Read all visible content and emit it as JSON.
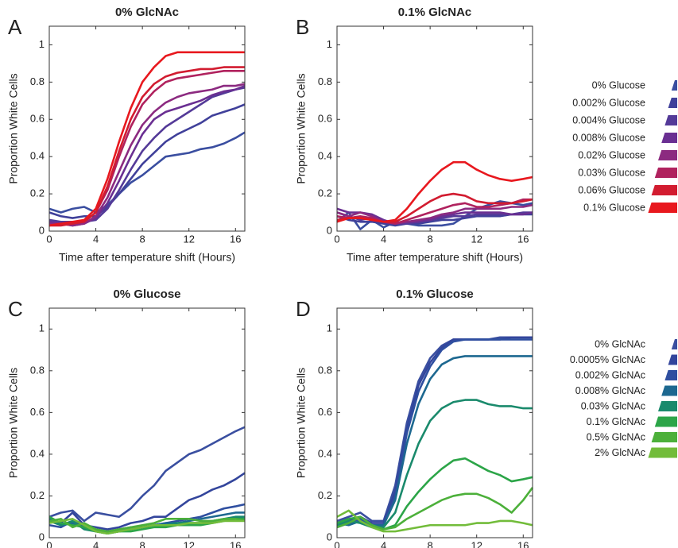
{
  "chart_data": [
    {
      "type": "line",
      "panel_label": "A",
      "title": "0% GlcNAc",
      "xlabel": "Time after temperature shift (Hours)",
      "ylabel": "Proportion White Cells",
      "x": [
        0,
        1,
        2,
        3,
        4,
        5,
        6,
        7,
        8,
        9,
        10,
        11,
        12,
        13,
        14,
        15,
        16,
        16.8
      ],
      "xlim": [
        0,
        16.8
      ],
      "ylim": [
        0,
        1.1
      ],
      "xticks": [
        0,
        4,
        8,
        12,
        16
      ],
      "yticks": [
        0,
        0.2,
        0.4,
        0.6,
        0.8,
        1
      ],
      "series": [
        {
          "name": "0% Glucose",
          "color": "#3a4ea0",
          "values": [
            0.12,
            0.1,
            0.12,
            0.13,
            0.1,
            0.14,
            0.2,
            0.26,
            0.3,
            0.35,
            0.4,
            0.41,
            0.42,
            0.44,
            0.45,
            0.47,
            0.5,
            0.53
          ]
        },
        {
          "name": "0.002% Glucose",
          "color": "#40409a",
          "values": [
            0.1,
            0.08,
            0.07,
            0.08,
            0.08,
            0.13,
            0.2,
            0.28,
            0.36,
            0.42,
            0.48,
            0.52,
            0.55,
            0.58,
            0.62,
            0.64,
            0.66,
            0.68
          ]
        },
        {
          "name": "0.004% Glucose",
          "color": "#543a98",
          "values": [
            0.06,
            0.05,
            0.05,
            0.05,
            0.06,
            0.12,
            0.22,
            0.33,
            0.43,
            0.5,
            0.56,
            0.6,
            0.64,
            0.68,
            0.72,
            0.74,
            0.76,
            0.77
          ]
        },
        {
          "name": "0.008% Glucose",
          "color": "#6a2f92",
          "values": [
            0.05,
            0.04,
            0.03,
            0.04,
            0.07,
            0.15,
            0.27,
            0.4,
            0.52,
            0.6,
            0.64,
            0.66,
            0.68,
            0.7,
            0.73,
            0.75,
            0.76,
            0.78
          ]
        },
        {
          "name": "0.02% Glucose",
          "color": "#8c2a80",
          "values": [
            0.04,
            0.04,
            0.03,
            0.04,
            0.08,
            0.18,
            0.32,
            0.46,
            0.57,
            0.64,
            0.69,
            0.72,
            0.74,
            0.75,
            0.76,
            0.78,
            0.78,
            0.79
          ]
        },
        {
          "name": "0.03% Glucose",
          "color": "#b0225e",
          "values": [
            0.03,
            0.04,
            0.04,
            0.05,
            0.1,
            0.22,
            0.4,
            0.56,
            0.68,
            0.75,
            0.8,
            0.82,
            0.83,
            0.84,
            0.85,
            0.86,
            0.86,
            0.86
          ]
        },
        {
          "name": "0.06% Glucose",
          "color": "#d21c30",
          "values": [
            0.03,
            0.03,
            0.04,
            0.05,
            0.1,
            0.24,
            0.43,
            0.6,
            0.72,
            0.79,
            0.83,
            0.85,
            0.86,
            0.87,
            0.87,
            0.88,
            0.88,
            0.88
          ]
        },
        {
          "name": "0.1% Glucose",
          "color": "#e8181e",
          "values": [
            0.03,
            0.04,
            0.05,
            0.06,
            0.12,
            0.28,
            0.48,
            0.66,
            0.8,
            0.88,
            0.94,
            0.96,
            0.96,
            0.96,
            0.96,
            0.96,
            0.96,
            0.96
          ]
        }
      ]
    },
    {
      "type": "line",
      "panel_label": "B",
      "title": "0.1% GlcNAc",
      "xlabel": "Time after temperature shift (Hours)",
      "ylabel": "Proportion White Cells",
      "x": [
        0,
        1,
        2,
        3,
        4,
        5,
        6,
        7,
        8,
        9,
        10,
        11,
        12,
        13,
        14,
        15,
        16,
        16.8
      ],
      "xlim": [
        0,
        16.8
      ],
      "ylim": [
        0,
        1.1
      ],
      "xticks": [
        0,
        4,
        8,
        12,
        16
      ],
      "yticks": [
        0,
        0.2,
        0.4,
        0.6,
        0.8,
        1
      ],
      "series": [
        {
          "color": "#3a4ea0",
          "values": [
            0.05,
            0.1,
            0.01,
            0.06,
            0.02,
            0.05,
            0.04,
            0.03,
            0.03,
            0.03,
            0.04,
            0.08,
            0.12,
            0.14,
            0.16,
            0.15,
            0.14,
            0.15
          ]
        },
        {
          "color": "#40409a",
          "values": [
            0.08,
            0.06,
            0.05,
            0.05,
            0.04,
            0.03,
            0.04,
            0.04,
            0.05,
            0.06,
            0.06,
            0.07,
            0.08,
            0.08,
            0.08,
            0.09,
            0.09,
            0.09
          ]
        },
        {
          "color": "#543a98",
          "values": [
            0.1,
            0.08,
            0.06,
            0.07,
            0.05,
            0.04,
            0.04,
            0.05,
            0.06,
            0.07,
            0.08,
            0.08,
            0.09,
            0.09,
            0.09,
            0.09,
            0.1,
            0.1
          ]
        },
        {
          "color": "#6a2f92",
          "values": [
            0.12,
            0.1,
            0.1,
            0.09,
            0.06,
            0.04,
            0.05,
            0.05,
            0.06,
            0.08,
            0.09,
            0.1,
            0.1,
            0.1,
            0.1,
            0.09,
            0.09,
            0.1
          ]
        },
        {
          "color": "#8c2a80",
          "values": [
            0.1,
            0.08,
            0.1,
            0.08,
            0.05,
            0.04,
            0.05,
            0.06,
            0.07,
            0.09,
            0.1,
            0.12,
            0.12,
            0.12,
            0.12,
            0.13,
            0.13,
            0.14
          ]
        },
        {
          "color": "#b0225e",
          "values": [
            0.08,
            0.07,
            0.08,
            0.07,
            0.05,
            0.04,
            0.06,
            0.08,
            0.1,
            0.12,
            0.14,
            0.15,
            0.13,
            0.13,
            0.14,
            0.15,
            0.17,
            0.17
          ]
        },
        {
          "color": "#d21c30",
          "values": [
            0.06,
            0.07,
            0.07,
            0.06,
            0.05,
            0.05,
            0.08,
            0.12,
            0.16,
            0.19,
            0.2,
            0.19,
            0.16,
            0.15,
            0.15,
            0.15,
            0.16,
            0.17
          ]
        },
        {
          "color": "#e8181e",
          "values": [
            0.05,
            0.07,
            0.07,
            0.06,
            0.05,
            0.06,
            0.12,
            0.2,
            0.27,
            0.33,
            0.37,
            0.37,
            0.33,
            0.3,
            0.28,
            0.27,
            0.28,
            0.29
          ]
        }
      ]
    },
    {
      "type": "line",
      "panel_label": "C",
      "title": "0% Glucose",
      "xlabel": "Time after temperature shift (Hours)",
      "ylabel": "Proportion White Cells",
      "x": [
        0,
        1,
        2,
        3,
        4,
        5,
        6,
        7,
        8,
        9,
        10,
        11,
        12,
        13,
        14,
        15,
        16,
        16.8
      ],
      "xlim": [
        0,
        16.8
      ],
      "ylim": [
        0,
        1.1
      ],
      "xticks": [
        0,
        4,
        8,
        12,
        16
      ],
      "yticks": [
        0,
        0.2,
        0.4,
        0.6,
        0.8,
        1
      ],
      "series": [
        {
          "name": "0% GlcNAc",
          "color": "#3a4fa0",
          "values": [
            0.1,
            0.12,
            0.13,
            0.08,
            0.12,
            0.11,
            0.1,
            0.14,
            0.2,
            0.25,
            0.32,
            0.36,
            0.4,
            0.42,
            0.45,
            0.48,
            0.51,
            0.53
          ]
        },
        {
          "name": "0.0005% GlcNAc",
          "color": "#33459c",
          "values": [
            0.08,
            0.07,
            0.12,
            0.06,
            0.05,
            0.04,
            0.05,
            0.07,
            0.08,
            0.1,
            0.1,
            0.14,
            0.18,
            0.2,
            0.23,
            0.25,
            0.28,
            0.31
          ]
        },
        {
          "name": "0.002% GlcNAc",
          "color": "#2f4fa0",
          "values": [
            0.06,
            0.05,
            0.08,
            0.06,
            0.04,
            0.03,
            0.04,
            0.05,
            0.05,
            0.06,
            0.07,
            0.08,
            0.09,
            0.1,
            0.12,
            0.14,
            0.15,
            0.16
          ]
        },
        {
          "name": "0.008% GlcNAc",
          "color": "#1d6890",
          "values": [
            0.09,
            0.06,
            0.07,
            0.05,
            0.03,
            0.03,
            0.03,
            0.04,
            0.05,
            0.06,
            0.07,
            0.07,
            0.08,
            0.09,
            0.1,
            0.11,
            0.12,
            0.12
          ]
        },
        {
          "name": "0.03% GlcNAc",
          "color": "#1a8a6c",
          "values": [
            0.08,
            0.06,
            0.08,
            0.04,
            0.03,
            0.02,
            0.03,
            0.04,
            0.05,
            0.06,
            0.06,
            0.07,
            0.07,
            0.07,
            0.08,
            0.09,
            0.1,
            0.1
          ]
        },
        {
          "name": "0.1% GlcNAc",
          "color": "#2ca548",
          "values": [
            0.1,
            0.07,
            0.06,
            0.05,
            0.03,
            0.02,
            0.03,
            0.03,
            0.04,
            0.05,
            0.05,
            0.06,
            0.06,
            0.06,
            0.07,
            0.08,
            0.09,
            0.09
          ]
        },
        {
          "name": "0.5% GlcNAc",
          "color": "#4cb03a",
          "values": [
            0.08,
            0.09,
            0.05,
            0.07,
            0.04,
            0.03,
            0.04,
            0.05,
            0.06,
            0.07,
            0.09,
            0.09,
            0.09,
            0.08,
            0.08,
            0.09,
            0.09,
            0.08
          ]
        },
        {
          "name": "2% GlcNAc",
          "color": "#72bc3a",
          "values": [
            0.07,
            0.08,
            0.09,
            0.06,
            0.03,
            0.02,
            0.03,
            0.04,
            0.05,
            0.06,
            0.06,
            0.06,
            0.07,
            0.07,
            0.07,
            0.08,
            0.08,
            0.08
          ]
        }
      ]
    },
    {
      "type": "line",
      "panel_label": "D",
      "title": "0.1% Glucose",
      "xlabel": "Time after temperature shift (Hours)",
      "ylabel": "Proportion White Cells",
      "x": [
        0,
        1,
        2,
        3,
        4,
        5,
        6,
        7,
        8,
        9,
        10,
        11,
        12,
        13,
        14,
        15,
        16,
        16.8
      ],
      "xlim": [
        0,
        16.8
      ],
      "ylim": [
        0,
        1.1
      ],
      "xticks": [
        0,
        4,
        8,
        12,
        16
      ],
      "yticks": [
        0,
        0.2,
        0.4,
        0.6,
        0.8,
        1
      ],
      "series": [
        {
          "color": "#3a4fa0",
          "values": [
            0.08,
            0.1,
            0.12,
            0.08,
            0.08,
            0.25,
            0.55,
            0.75,
            0.86,
            0.92,
            0.95,
            0.95,
            0.95,
            0.95,
            0.96,
            0.96,
            0.96,
            0.96
          ]
        },
        {
          "color": "#33459c",
          "values": [
            0.06,
            0.08,
            0.1,
            0.07,
            0.07,
            0.22,
            0.52,
            0.73,
            0.84,
            0.91,
            0.95,
            0.95,
            0.95,
            0.95,
            0.95,
            0.96,
            0.96,
            0.96
          ]
        },
        {
          "color": "#2f4fa0",
          "values": [
            0.05,
            0.07,
            0.09,
            0.06,
            0.06,
            0.2,
            0.5,
            0.7,
            0.82,
            0.9,
            0.94,
            0.95,
            0.95,
            0.95,
            0.95,
            0.95,
            0.95,
            0.95
          ]
        },
        {
          "color": "#1d6890",
          "values": [
            0.07,
            0.06,
            0.08,
            0.06,
            0.06,
            0.18,
            0.45,
            0.64,
            0.76,
            0.83,
            0.86,
            0.87,
            0.87,
            0.87,
            0.87,
            0.87,
            0.87,
            0.87
          ]
        },
        {
          "color": "#1a8a6c",
          "values": [
            0.06,
            0.08,
            0.07,
            0.05,
            0.05,
            0.12,
            0.3,
            0.45,
            0.56,
            0.62,
            0.65,
            0.66,
            0.66,
            0.64,
            0.63,
            0.63,
            0.62,
            0.62
          ]
        },
        {
          "color": "#2ca548",
          "values": [
            0.07,
            0.09,
            0.1,
            0.06,
            0.04,
            0.06,
            0.15,
            0.22,
            0.28,
            0.33,
            0.37,
            0.38,
            0.35,
            0.32,
            0.3,
            0.27,
            0.28,
            0.29
          ]
        },
        {
          "color": "#4cb03a",
          "values": [
            0.05,
            0.07,
            0.1,
            0.06,
            0.04,
            0.05,
            0.09,
            0.12,
            0.15,
            0.18,
            0.2,
            0.21,
            0.21,
            0.19,
            0.16,
            0.12,
            0.18,
            0.24
          ]
        },
        {
          "color": "#72bc3a",
          "values": [
            0.1,
            0.13,
            0.08,
            0.05,
            0.03,
            0.03,
            0.04,
            0.05,
            0.06,
            0.06,
            0.06,
            0.06,
            0.07,
            0.07,
            0.08,
            0.08,
            0.07,
            0.06
          ]
        }
      ]
    }
  ]
}
